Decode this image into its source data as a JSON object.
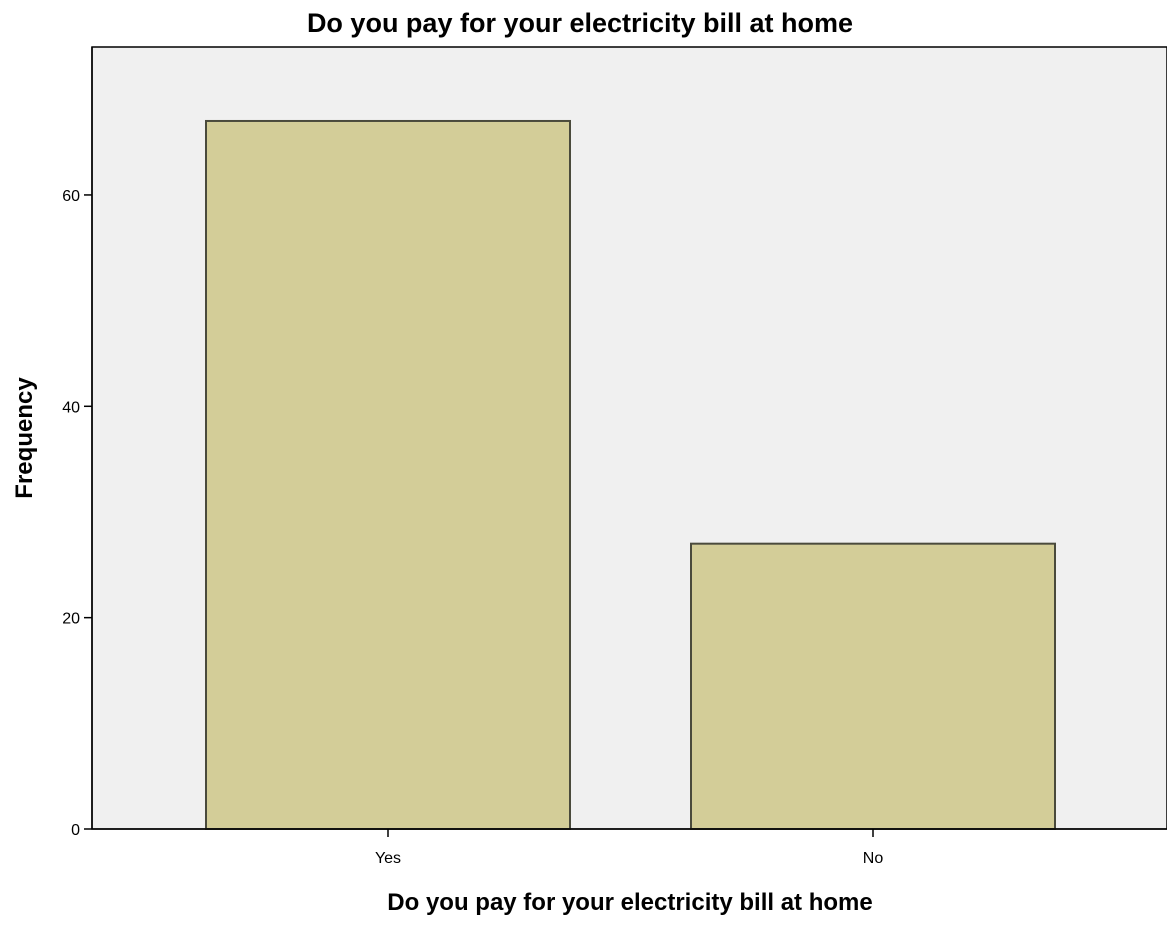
{
  "chart_data": {
    "type": "bar",
    "title": "Do you pay for your electricity bill at home",
    "xlabel": "Do you pay for your electricity bill at home",
    "ylabel": "Frequency",
    "categories": [
      "Yes",
      "No"
    ],
    "values": [
      67,
      27
    ],
    "ylim": [
      0,
      74
    ],
    "yticks": [
      0,
      20,
      40,
      60
    ],
    "grid": false,
    "legend": "none",
    "colors": {
      "bar_fill": "#d3cd98",
      "bar_stroke": "#4a4a3c",
      "plot_background": "#f0f0f0",
      "axis": "#000000"
    }
  }
}
